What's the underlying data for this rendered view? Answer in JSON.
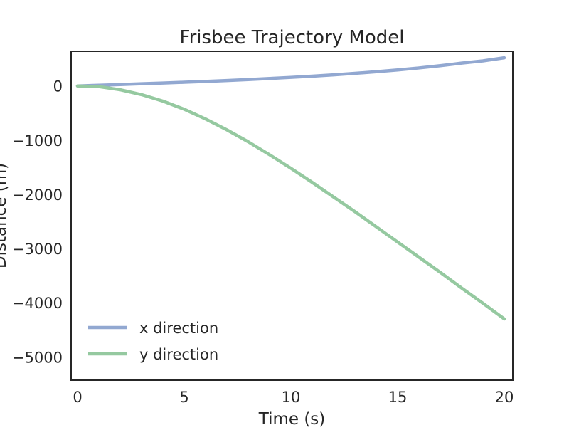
{
  "chart_data": {
    "type": "line",
    "title": "Frisbee Trajectory Model",
    "xlabel": "Time (s)",
    "ylabel": "Distance (m)",
    "xlim": [
      -0.3,
      20.4
    ],
    "ylim": [
      -5430,
      640
    ],
    "xticks": [
      0,
      5,
      10,
      15,
      20
    ],
    "yticks": [
      0,
      -1000,
      -2000,
      -3000,
      -4000,
      -5000
    ],
    "grid": false,
    "legend_position": "lower left",
    "x": [
      0,
      1,
      2,
      3,
      4,
      5,
      6,
      7,
      8,
      9,
      10,
      11,
      12,
      13,
      14,
      15,
      16,
      17,
      18,
      19,
      20
    ],
    "series": [
      {
        "name": "x direction",
        "color": "#92a8d1",
        "values": [
          0,
          13,
          26,
          40,
          54,
          68,
          84,
          100,
          118,
          137,
          158,
          180,
          205,
          232,
          262,
          295,
          332,
          374,
          421,
          463,
          520
        ]
      },
      {
        "name": "y direction",
        "color": "#95c9a0",
        "values": [
          0,
          -12,
          -70,
          -160,
          -280,
          -430,
          -610,
          -810,
          -1030,
          -1270,
          -1520,
          -1780,
          -2050,
          -2320,
          -2600,
          -2880,
          -3160,
          -3440,
          -3730,
          -4010,
          -4300
        ]
      }
    ]
  }
}
